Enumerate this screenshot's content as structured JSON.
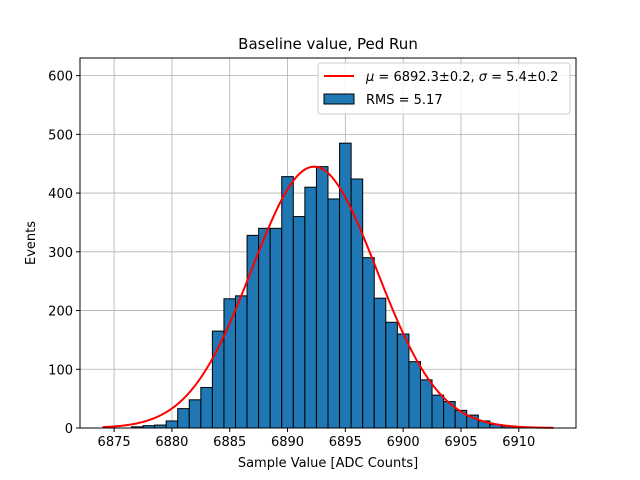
{
  "chart_data": {
    "type": "bar",
    "title": "Baseline value, Ped Run",
    "xlabel": "Sample Value [ADC Counts]",
    "ylabel": "Events",
    "xlim": [
      6872.05,
      6914.95
    ],
    "ylim": [
      0,
      630
    ],
    "grid": true,
    "xticks": [
      6875,
      6880,
      6885,
      6890,
      6895,
      6900,
      6905,
      6910
    ],
    "yticks": [
      0,
      100,
      200,
      300,
      400,
      500,
      600
    ],
    "legend_position": "top-right",
    "bin_width": 1,
    "histogram": {
      "name": "RMS = 5.17",
      "color": "#1f77b4",
      "edge_color": "#000000",
      "bins": [
        {
          "x0": 6876.5,
          "count": 2
        },
        {
          "x0": 6877.5,
          "count": 4
        },
        {
          "x0": 6878.5,
          "count": 5
        },
        {
          "x0": 6879.5,
          "count": 12
        },
        {
          "x0": 6880.5,
          "count": 33
        },
        {
          "x0": 6881.5,
          "count": 48
        },
        {
          "x0": 6882.5,
          "count": 69
        },
        {
          "x0": 6883.5,
          "count": 165
        },
        {
          "x0": 6884.5,
          "count": 220
        },
        {
          "x0": 6885.5,
          "count": 225
        },
        {
          "x0": 6886.5,
          "count": 328
        },
        {
          "x0": 6887.5,
          "count": 340
        },
        {
          "x0": 6888.5,
          "count": 340
        },
        {
          "x0": 6889.5,
          "count": 428
        },
        {
          "x0": 6890.5,
          "count": 360
        },
        {
          "x0": 6891.5,
          "count": 410
        },
        {
          "x0": 6892.5,
          "count": 445
        },
        {
          "x0": 6893.5,
          "count": 390
        },
        {
          "x0": 6894.5,
          "count": 485
        },
        {
          "x0": 6895.5,
          "count": 424
        },
        {
          "x0": 6896.5,
          "count": 290
        },
        {
          "x0": 6897.5,
          "count": 221
        },
        {
          "x0": 6898.5,
          "count": 180
        },
        {
          "x0": 6899.5,
          "count": 160
        },
        {
          "x0": 6900.5,
          "count": 113
        },
        {
          "x0": 6901.5,
          "count": 82
        },
        {
          "x0": 6902.5,
          "count": 56
        },
        {
          "x0": 6903.5,
          "count": 45
        },
        {
          "x0": 6904.5,
          "count": 30
        },
        {
          "x0": 6905.5,
          "count": 22
        },
        {
          "x0": 6906.5,
          "count": 12
        },
        {
          "x0": 6907.5,
          "count": 6
        },
        {
          "x0": 6908.5,
          "count": 3
        },
        {
          "x0": 6909.5,
          "count": 1
        }
      ]
    },
    "fit": {
      "name": "μ = 6892.3±0.2, σ = 5.4±0.2",
      "name_parts": {
        "mu_symbol": "μ",
        "mu_value": " = 6892.3±0.2, ",
        "sigma_symbol": "σ",
        "sigma_value": " = 5.4±0.2"
      },
      "color": "#ff0000",
      "mu": 6892.3,
      "sigma": 5.4,
      "amplitude": 445,
      "x_range": [
        6874,
        6913
      ]
    }
  }
}
